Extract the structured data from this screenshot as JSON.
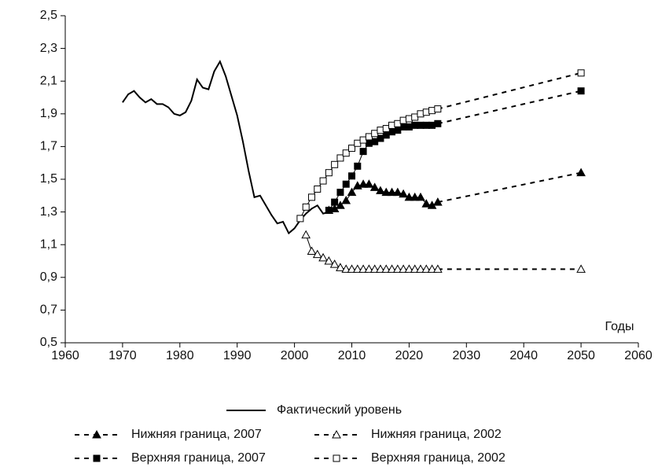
{
  "chart_data": {
    "type": "line",
    "x_axis_label": "Годы",
    "xlim": [
      1960,
      2060
    ],
    "xticks": [
      1960,
      1970,
      1980,
      1990,
      2000,
      2010,
      2020,
      2030,
      2040,
      2050,
      2060
    ],
    "ylim": [
      0.5,
      2.5
    ],
    "yticks": [
      {
        "value": 0.5,
        "label": "0,5"
      },
      {
        "value": 0.7,
        "label": "0,7"
      },
      {
        "value": 0.9,
        "label": "0,9"
      },
      {
        "value": 1.1,
        "label": "1,1"
      },
      {
        "value": 1.3,
        "label": "1,3"
      },
      {
        "value": 1.5,
        "label": "1,5"
      },
      {
        "value": 1.7,
        "label": "1,7"
      },
      {
        "value": 1.9,
        "label": "1,9"
      },
      {
        "value": 2.1,
        "label": "2,1"
      },
      {
        "value": 2.3,
        "label": "2,3"
      },
      {
        "value": 2.5,
        "label": "2,5"
      }
    ],
    "grid": false,
    "series": [
      {
        "name": "Фактический уровень",
        "color": "#000000",
        "marker": "none",
        "dashed_tail": false,
        "x": [
          1970,
          1971,
          1972,
          1973,
          1974,
          1975,
          1976,
          1977,
          1978,
          1979,
          1980,
          1981,
          1982,
          1983,
          1984,
          1985,
          1986,
          1987,
          1988,
          1989,
          1990,
          1991,
          1992,
          1993,
          1994,
          1995,
          1996,
          1997,
          1998,
          1999,
          2000,
          2001,
          2002,
          2003,
          2004,
          2005,
          2006
        ],
        "values": [
          1.97,
          2.02,
          2.04,
          2.0,
          1.97,
          1.99,
          1.96,
          1.96,
          1.94,
          1.9,
          1.89,
          1.91,
          1.98,
          2.11,
          2.06,
          2.05,
          2.16,
          2.22,
          2.13,
          2.01,
          1.89,
          1.73,
          1.55,
          1.39,
          1.4,
          1.34,
          1.28,
          1.23,
          1.24,
          1.17,
          1.2,
          1.25,
          1.29,
          1.32,
          1.34,
          1.29,
          1.3
        ]
      },
      {
        "name": "Нижняя граница, 2007",
        "color": "#000000",
        "marker": "triangle-filled",
        "dashed_tail": true,
        "x": [
          2006,
          2007,
          2008,
          2009,
          2010,
          2011,
          2012,
          2013,
          2014,
          2015,
          2016,
          2017,
          2018,
          2019,
          2020,
          2021,
          2022,
          2023,
          2024,
          2025,
          2050
        ],
        "values": [
          1.31,
          1.32,
          1.34,
          1.37,
          1.42,
          1.46,
          1.47,
          1.47,
          1.45,
          1.43,
          1.42,
          1.42,
          1.42,
          1.41,
          1.39,
          1.39,
          1.39,
          1.35,
          1.34,
          1.36,
          1.54
        ]
      },
      {
        "name": "Нижняя граница, 2002",
        "color": "#000000",
        "marker": "triangle-open",
        "dashed_tail": true,
        "x": [
          2002,
          2003,
          2004,
          2005,
          2006,
          2007,
          2008,
          2009,
          2010,
          2011,
          2012,
          2013,
          2014,
          2015,
          2016,
          2017,
          2018,
          2019,
          2020,
          2021,
          2022,
          2023,
          2024,
          2025,
          2050
        ],
        "values": [
          1.16,
          1.06,
          1.04,
          1.02,
          1.0,
          0.98,
          0.96,
          0.95,
          0.95,
          0.95,
          0.95,
          0.95,
          0.95,
          0.95,
          0.95,
          0.95,
          0.95,
          0.95,
          0.95,
          0.95,
          0.95,
          0.95,
          0.95,
          0.95,
          0.95
        ]
      },
      {
        "name": "Верхняя граница, 2007",
        "color": "#000000",
        "marker": "square-filled",
        "dashed_tail": true,
        "x": [
          2006,
          2007,
          2008,
          2009,
          2010,
          2011,
          2012,
          2013,
          2014,
          2015,
          2016,
          2017,
          2018,
          2019,
          2020,
          2021,
          2022,
          2023,
          2024,
          2025,
          2050
        ],
        "values": [
          1.31,
          1.36,
          1.42,
          1.47,
          1.52,
          1.58,
          1.67,
          1.72,
          1.73,
          1.75,
          1.77,
          1.79,
          1.8,
          1.82,
          1.82,
          1.83,
          1.83,
          1.83,
          1.83,
          1.84,
          2.04
        ]
      },
      {
        "name": "Верхняя граница, 2002",
        "color": "#000000",
        "marker": "square-open",
        "dashed_tail": true,
        "x": [
          2001,
          2002,
          2003,
          2004,
          2005,
          2006,
          2007,
          2008,
          2009,
          2010,
          2011,
          2012,
          2013,
          2014,
          2015,
          2016,
          2017,
          2018,
          2019,
          2020,
          2021,
          2022,
          2023,
          2024,
          2025,
          2050
        ],
        "values": [
          1.26,
          1.33,
          1.39,
          1.44,
          1.49,
          1.54,
          1.59,
          1.63,
          1.66,
          1.69,
          1.72,
          1.74,
          1.76,
          1.78,
          1.8,
          1.81,
          1.83,
          1.84,
          1.86,
          1.87,
          1.88,
          1.9,
          1.91,
          1.92,
          1.93,
          2.15
        ]
      }
    ]
  }
}
